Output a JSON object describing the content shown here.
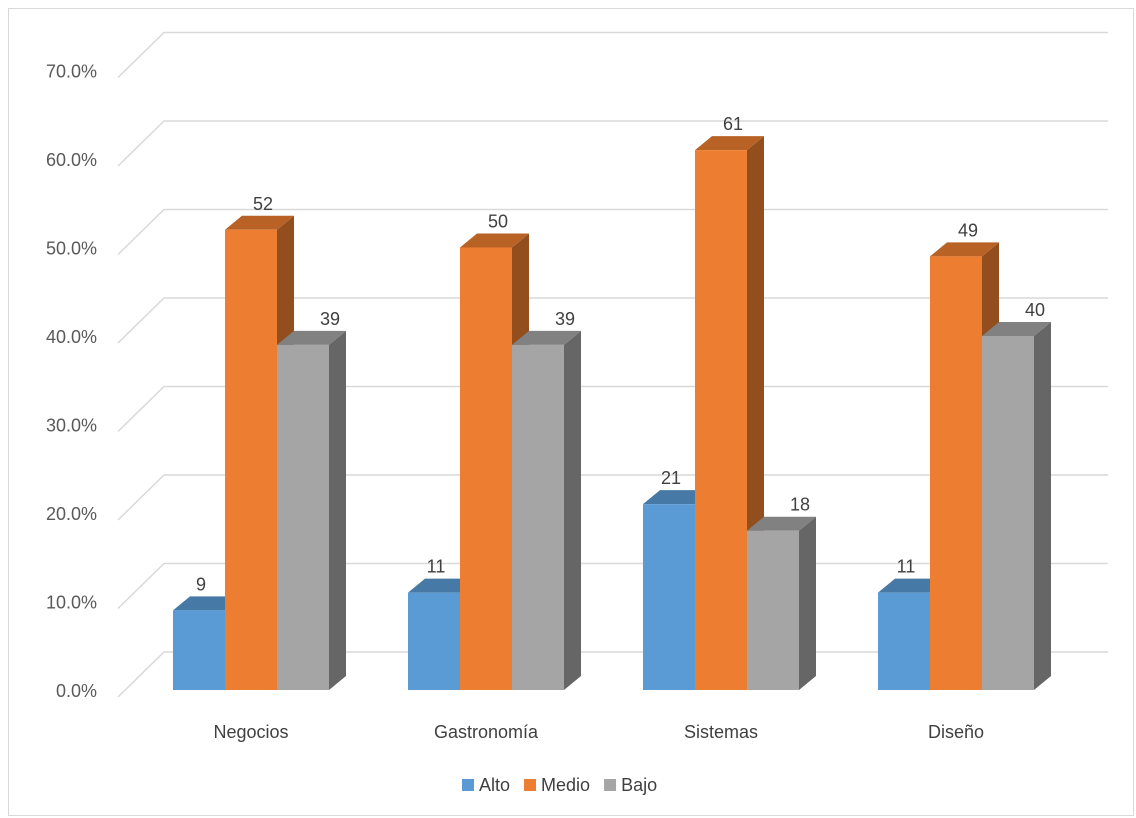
{
  "chart_data": {
    "type": "bar",
    "variant": "3d-clustered-column",
    "categories": [
      "Negocios",
      "Gastronomía",
      "Sistemas",
      "Diseño"
    ],
    "series": [
      {
        "name": "Alto",
        "color": "#5B9BD5",
        "values": [
          9,
          11,
          21,
          11
        ],
        "labels": [
          "9",
          "11",
          "21",
          "11"
        ]
      },
      {
        "name": "Medio",
        "color": "#ED7D31",
        "values": [
          52,
          50,
          61,
          49
        ],
        "labels": [
          "52",
          "50",
          "61",
          "49"
        ]
      },
      {
        "name": "Bajo",
        "color": "#A5A5A5",
        "values": [
          39,
          39,
          18,
          40
        ],
        "labels": [
          "39",
          "39",
          "18",
          "40"
        ]
      }
    ],
    "y_ticks": [
      "0.0%",
      "10.0%",
      "20.0%",
      "30.0%",
      "40.0%",
      "50.0%",
      "60.0%",
      "70.0%"
    ],
    "ylim": [
      0,
      70
    ],
    "grid": true,
    "legend_position": "bottom",
    "title": "",
    "xlabel": "",
    "ylabel": ""
  }
}
